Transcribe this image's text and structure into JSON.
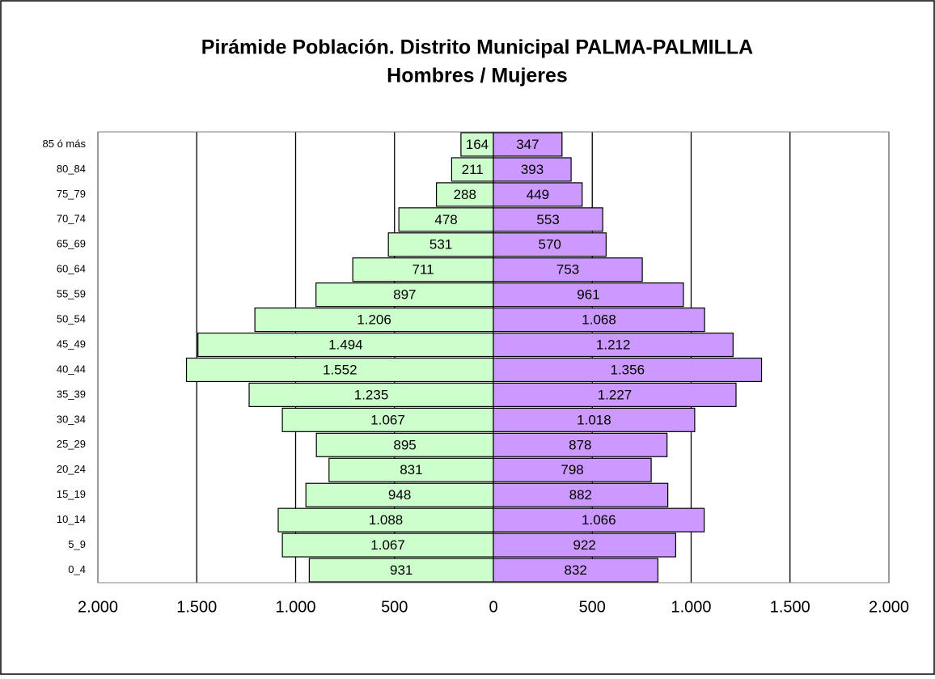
{
  "chart_data": {
    "type": "pyramid",
    "title": "Pirámide Población. Distrito Municipal PALMA-PALMILLA",
    "subtitle": "Hombres / Mujeres",
    "categories": [
      "0_4",
      "5_9",
      "10_14",
      "15_19",
      "20_24",
      "25_29",
      "30_34",
      "35_39",
      "40_44",
      "45_49",
      "50_54",
      "55_59",
      "60_64",
      "65_69",
      "70_74",
      "75_79",
      "80_84",
      "85 ó más"
    ],
    "series": [
      {
        "color": "#ccffcc",
        "side": "left",
        "values": [
          931,
          1067,
          1088,
          948,
          831,
          895,
          1067,
          1235,
          1552,
          1494,
          1206,
          897,
          711,
          531,
          478,
          288,
          211,
          164
        ],
        "value_labels": [
          "931",
          "1.067",
          "1.088",
          "948",
          "831",
          "895",
          "1.067",
          "1.235",
          "1.552",
          "1.494",
          "1.206",
          "897",
          "711",
          "531",
          "478",
          "288",
          "211",
          "164"
        ]
      },
      {
        "color": "#cc99ff",
        "side": "right",
        "values": [
          832,
          922,
          1066,
          882,
          798,
          878,
          1018,
          1227,
          1356,
          1212,
          1068,
          961,
          753,
          570,
          553,
          449,
          393,
          347
        ],
        "value_labels": [
          "832",
          "922",
          "1.066",
          "882",
          "798",
          "878",
          "1.018",
          "1.227",
          "1.356",
          "1.212",
          "1.068",
          "961",
          "753",
          "570",
          "553",
          "449",
          "393",
          "347"
        ]
      }
    ],
    "xlim": [
      -2000,
      2000
    ],
    "xticks": [
      {
        "value": -2000,
        "label": "2.000"
      },
      {
        "value": -1500,
        "label": "1.500"
      },
      {
        "value": -1000,
        "label": "1.000"
      },
      {
        "value": -500,
        "label": "500"
      },
      0,
      500,
      {
        "value": 1000,
        "label": "1.000"
      },
      {
        "value": 1500,
        "label": "1.500"
      },
      {
        "value": 2000,
        "label": "2.000"
      }
    ],
    "grid": true
  }
}
